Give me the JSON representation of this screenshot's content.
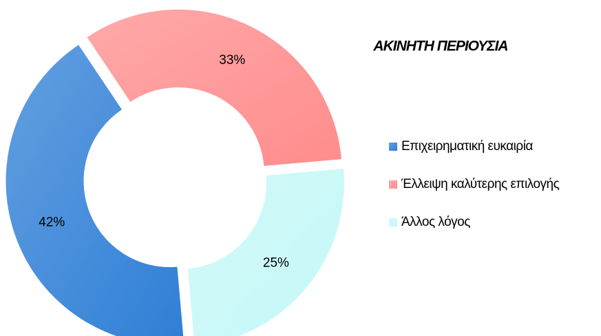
{
  "chart_data": {
    "type": "pie",
    "title": "ΑΚΙΝΗΤΗ ΠΕΡΙΟΥΣΙΑ",
    "categories": [
      "Επιχειρηματική ευκαιρία",
      "Έλλειψη καλύτερης επιλογής",
      "Άλλος λόγος"
    ],
    "values": [
      42,
      33,
      25
    ],
    "value_labels": [
      "42%",
      "33%",
      "25%"
    ],
    "colors": [
      "#2f7fd6",
      "#ff8c8c",
      "#c4f7f7"
    ],
    "legend": "right"
  }
}
